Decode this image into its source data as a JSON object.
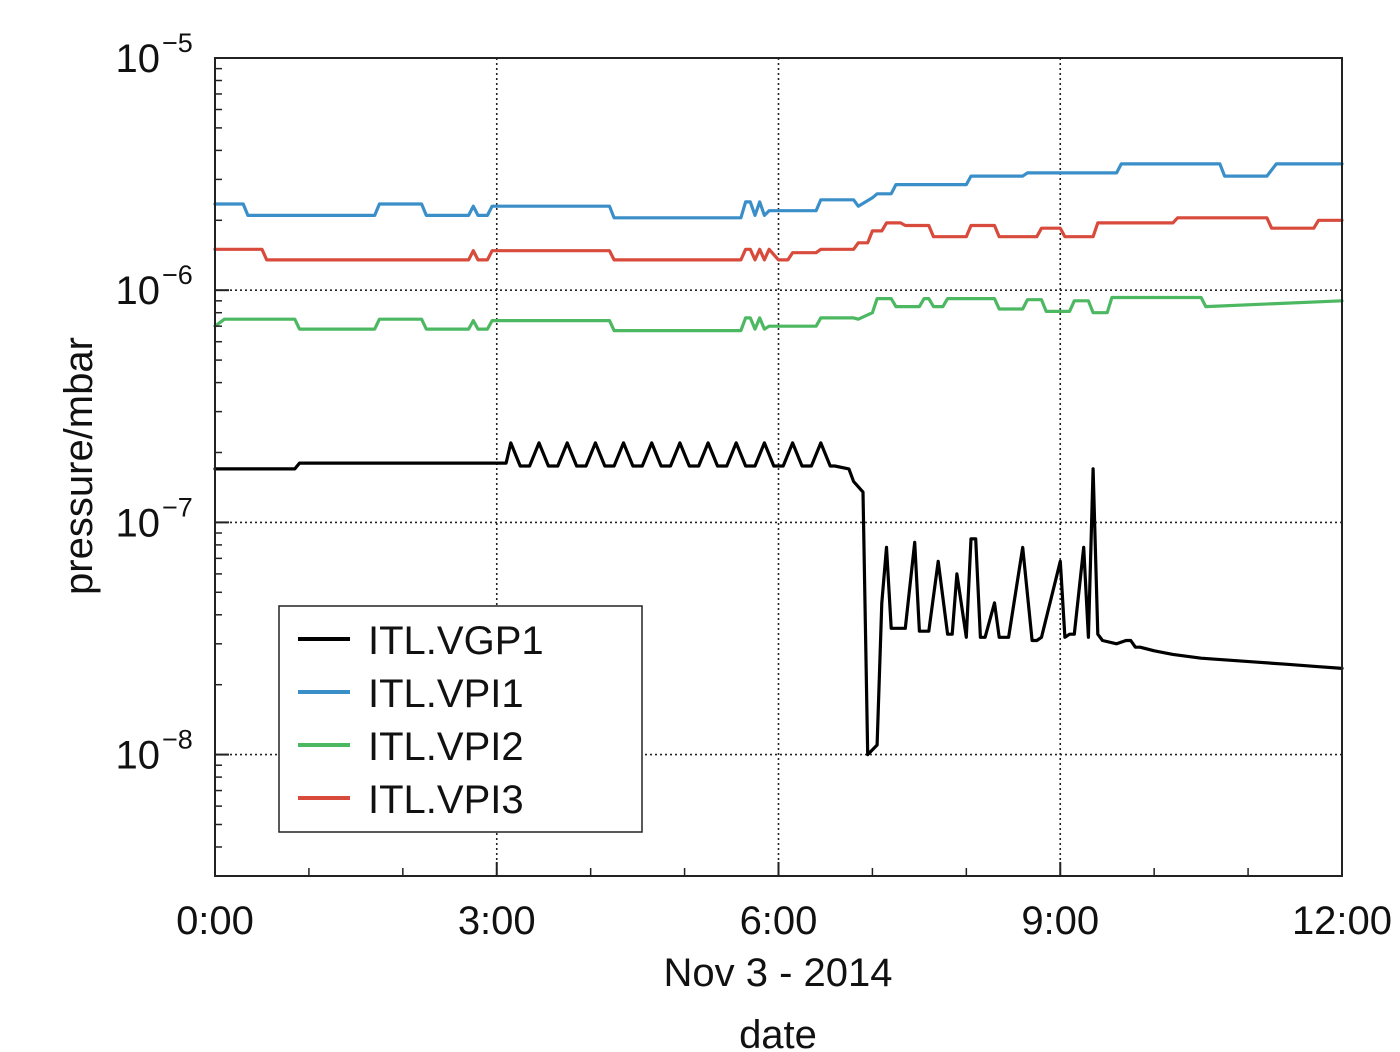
{
  "chart_data": {
    "type": "line",
    "title": "",
    "xlabel": "date",
    "xlabel_secondary": "Nov 3 - 2014",
    "ylabel": "pressure/mbar",
    "y_scale": "log",
    "x_unit": "hours",
    "xlim": [
      0,
      12
    ],
    "ylim": [
      3e-09,
      1e-05
    ],
    "x_ticks": [
      {
        "value": 0,
        "label": "0:00"
      },
      {
        "value": 3,
        "label": "3:00"
      },
      {
        "value": 6,
        "label": "6:00"
      },
      {
        "value": 9,
        "label": "9:00"
      },
      {
        "value": 12,
        "label": "12:00"
      }
    ],
    "y_ticks": [
      {
        "value": 1e-05,
        "base": "10",
        "exp": "−5"
      },
      {
        "value": 1e-06,
        "base": "10",
        "exp": "−6"
      },
      {
        "value": 1e-07,
        "base": "10",
        "exp": "−7"
      },
      {
        "value": 1e-08,
        "base": "10",
        "exp": "−8"
      }
    ],
    "grid": true,
    "legend_position": "bottom-left",
    "series": [
      {
        "name": "ITL.VGP1",
        "color": "#000000",
        "x": [
          0,
          0.85,
          0.9,
          3.0,
          3.1,
          3.15,
          3.25,
          3.35,
          3.45,
          3.55,
          3.65,
          3.75,
          3.85,
          3.95,
          4.05,
          4.15,
          4.25,
          4.35,
          4.45,
          4.55,
          4.65,
          4.75,
          4.85,
          4.95,
          5.05,
          5.15,
          5.25,
          5.35,
          5.45,
          5.55,
          5.65,
          5.75,
          5.85,
          5.95,
          6.05,
          6.15,
          6.25,
          6.35,
          6.45,
          6.55,
          6.6,
          6.75,
          6.8,
          6.9,
          6.95,
          7.05,
          7.1,
          7.15,
          7.2,
          7.25,
          7.3,
          7.35,
          7.45,
          7.5,
          7.55,
          7.6,
          7.7,
          7.8,
          7.85,
          7.9,
          8.0,
          8.05,
          8.1,
          8.15,
          8.2,
          8.3,
          8.35,
          8.4,
          8.45,
          8.6,
          8.7,
          8.75,
          8.8,
          9.0,
          9.05,
          9.1,
          9.15,
          9.25,
          9.3,
          9.35,
          9.4,
          9.45,
          9.6,
          9.7,
          9.75,
          9.8,
          9.85,
          10.0,
          10.2,
          10.5,
          10.8,
          11.1,
          11.4,
          11.7,
          12.0
        ],
        "y": [
          1.7e-07,
          1.7e-07,
          1.8e-07,
          1.8e-07,
          1.8e-07,
          2.2e-07,
          1.75e-07,
          1.75e-07,
          2.2e-07,
          1.75e-07,
          1.75e-07,
          2.2e-07,
          1.75e-07,
          1.75e-07,
          2.2e-07,
          1.75e-07,
          1.75e-07,
          2.2e-07,
          1.75e-07,
          1.75e-07,
          2.2e-07,
          1.75e-07,
          1.75e-07,
          2.2e-07,
          1.75e-07,
          1.75e-07,
          2.2e-07,
          1.75e-07,
          1.75e-07,
          2.2e-07,
          1.75e-07,
          1.75e-07,
          2.2e-07,
          1.75e-07,
          1.75e-07,
          2.2e-07,
          1.75e-07,
          1.75e-07,
          2.2e-07,
          1.75e-07,
          1.75e-07,
          1.7e-07,
          1.5e-07,
          1.35e-07,
          1e-08,
          1.1e-08,
          4.5e-08,
          7.8e-08,
          3.5e-08,
          3.5e-08,
          3.5e-08,
          3.5e-08,
          8.2e-08,
          3.4e-08,
          3.4e-08,
          3.4e-08,
          6.8e-08,
          3.3e-08,
          3.3e-08,
          6e-08,
          3.2e-08,
          8.5e-08,
          8.5e-08,
          3.2e-08,
          3.2e-08,
          4.5e-08,
          3.2e-08,
          3.2e-08,
          3.2e-08,
          7.8e-08,
          3.1e-08,
          3.1e-08,
          3.2e-08,
          6.8e-08,
          3.2e-08,
          3.3e-08,
          3.3e-08,
          7.8e-08,
          3.2e-08,
          1.7e-07,
          3.3e-08,
          3.1e-08,
          3e-08,
          3.1e-08,
          3.1e-08,
          2.9e-08,
          2.9e-08,
          2.8e-08,
          2.7e-08,
          2.6e-08,
          2.55e-08,
          2.5e-08,
          2.45e-08,
          2.4e-08,
          2.35e-08
        ]
      },
      {
        "name": "ITL.VPI1",
        "color": "#3a8fc9",
        "x": [
          0,
          0.3,
          0.35,
          1.7,
          1.75,
          2.2,
          2.25,
          2.7,
          2.75,
          2.8,
          2.9,
          2.95,
          4.2,
          4.25,
          5.6,
          5.65,
          5.7,
          5.75,
          5.8,
          5.85,
          5.9,
          6.0,
          6.4,
          6.45,
          6.8,
          6.85,
          7.0,
          7.05,
          7.2,
          7.25,
          8.0,
          8.05,
          8.6,
          8.65,
          9.6,
          9.65,
          10.7,
          10.75,
          11.2,
          11.3,
          12.0
        ],
        "y": [
          2.35e-06,
          2.35e-06,
          2.1e-06,
          2.1e-06,
          2.35e-06,
          2.35e-06,
          2.1e-06,
          2.1e-06,
          2.3e-06,
          2.1e-06,
          2.1e-06,
          2.3e-06,
          2.3e-06,
          2.05e-06,
          2.05e-06,
          2.4e-06,
          2.4e-06,
          2.1e-06,
          2.4e-06,
          2.1e-06,
          2.2e-06,
          2.2e-06,
          2.2e-06,
          2.45e-06,
          2.45e-06,
          2.3e-06,
          2.5e-06,
          2.6e-06,
          2.6e-06,
          2.85e-06,
          2.85e-06,
          3.1e-06,
          3.1e-06,
          3.2e-06,
          3.2e-06,
          3.5e-06,
          3.5e-06,
          3.1e-06,
          3.1e-06,
          3.5e-06,
          3.5e-06
        ]
      },
      {
        "name": "ITL.VPI2",
        "color": "#4cb862",
        "x": [
          0,
          0.1,
          0.15,
          0.85,
          0.9,
          1.7,
          1.75,
          2.2,
          2.25,
          2.7,
          2.75,
          2.8,
          2.9,
          2.95,
          4.2,
          4.25,
          5.6,
          5.65,
          5.7,
          5.75,
          5.8,
          5.85,
          5.9,
          6.0,
          6.4,
          6.45,
          6.8,
          6.85,
          7.0,
          7.05,
          7.2,
          7.25,
          7.5,
          7.55,
          7.6,
          7.65,
          7.75,
          7.8,
          7.95,
          8.0,
          8.3,
          8.35,
          8.6,
          8.65,
          8.8,
          8.85,
          9.1,
          9.15,
          9.3,
          9.35,
          9.5,
          9.55,
          10.5,
          10.55,
          12.0
        ],
        "y": [
          7e-07,
          7.5e-07,
          7.5e-07,
          7.5e-07,
          6.8e-07,
          6.8e-07,
          7.5e-07,
          7.5e-07,
          6.8e-07,
          6.8e-07,
          7.4e-07,
          6.8e-07,
          6.8e-07,
          7.4e-07,
          7.4e-07,
          6.7e-07,
          6.7e-07,
          7.6e-07,
          7.6e-07,
          6.8e-07,
          7.6e-07,
          6.8e-07,
          7e-07,
          7e-07,
          7e-07,
          7.6e-07,
          7.6e-07,
          7.5e-07,
          8e-07,
          9.2e-07,
          9.2e-07,
          8.5e-07,
          8.5e-07,
          9.2e-07,
          9.2e-07,
          8.5e-07,
          8.5e-07,
          9.2e-07,
          9.2e-07,
          9.2e-07,
          9.2e-07,
          8.3e-07,
          8.3e-07,
          9.1e-07,
          9.1e-07,
          8.1e-07,
          8.1e-07,
          9e-07,
          9e-07,
          8e-07,
          8e-07,
          9.3e-07,
          9.3e-07,
          8.5e-07,
          9e-07
        ]
      },
      {
        "name": "ITL.VPI3",
        "color": "#d84a3b",
        "x": [
          0,
          0.5,
          0.55,
          2.7,
          2.75,
          2.8,
          2.9,
          2.95,
          4.2,
          4.25,
          5.6,
          5.65,
          5.7,
          5.75,
          5.8,
          5.85,
          5.9,
          6.0,
          6.1,
          6.15,
          6.4,
          6.45,
          6.8,
          6.85,
          6.95,
          7.0,
          7.1,
          7.15,
          7.3,
          7.35,
          7.6,
          7.65,
          8.0,
          8.05,
          8.3,
          8.35,
          8.75,
          8.8,
          9.0,
          9.05,
          9.35,
          9.4,
          10.2,
          10.25,
          11.2,
          11.25,
          11.7,
          11.75,
          12.0
        ],
        "y": [
          1.5e-06,
          1.5e-06,
          1.35e-06,
          1.35e-06,
          1.48e-06,
          1.35e-06,
          1.35e-06,
          1.48e-06,
          1.48e-06,
          1.35e-06,
          1.35e-06,
          1.5e-06,
          1.5e-06,
          1.35e-06,
          1.5e-06,
          1.35e-06,
          1.5e-06,
          1.35e-06,
          1.35e-06,
          1.45e-06,
          1.45e-06,
          1.5e-06,
          1.5e-06,
          1.6e-06,
          1.6e-06,
          1.8e-06,
          1.8e-06,
          1.95e-06,
          1.95e-06,
          1.9e-06,
          1.9e-06,
          1.7e-06,
          1.7e-06,
          1.9e-06,
          1.9e-06,
          1.7e-06,
          1.7e-06,
          1.85e-06,
          1.85e-06,
          1.7e-06,
          1.7e-06,
          1.95e-06,
          1.95e-06,
          2.05e-06,
          2.05e-06,
          1.85e-06,
          1.85e-06,
          2e-06,
          2e-06
        ]
      }
    ]
  }
}
